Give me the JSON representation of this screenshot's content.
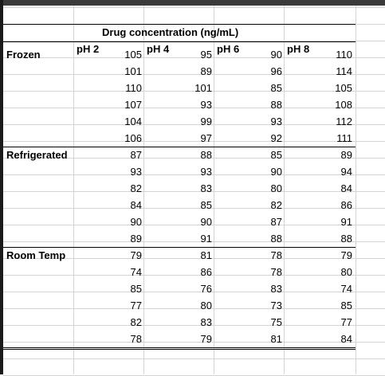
{
  "spreadsheet": {
    "title": "Drug concentration (ng/mL)",
    "ph_headers": [
      "pH 2",
      "pH 4",
      "pH 6",
      "pH 8"
    ],
    "groups": [
      {
        "label": "Frozen",
        "rows": [
          [
            105,
            95,
            90,
            110
          ],
          [
            101,
            89,
            96,
            114
          ],
          [
            110,
            101,
            85,
            105
          ],
          [
            107,
            93,
            88,
            108
          ],
          [
            104,
            99,
            93,
            112
          ],
          [
            106,
            97,
            92,
            111
          ]
        ]
      },
      {
        "label": "Refrigerated",
        "rows": [
          [
            87,
            88,
            85,
            89
          ],
          [
            93,
            93,
            90,
            94
          ],
          [
            82,
            83,
            80,
            84
          ],
          [
            84,
            85,
            82,
            86
          ],
          [
            90,
            90,
            87,
            91
          ],
          [
            89,
            91,
            88,
            88
          ]
        ]
      },
      {
        "label": "Room Temp",
        "rows": [
          [
            79,
            81,
            78,
            79
          ],
          [
            74,
            86,
            78,
            80
          ],
          [
            85,
            76,
            83,
            74
          ],
          [
            77,
            80,
            73,
            85
          ],
          [
            82,
            83,
            75,
            77
          ],
          [
            78,
            79,
            81,
            84
          ]
        ]
      }
    ]
  }
}
